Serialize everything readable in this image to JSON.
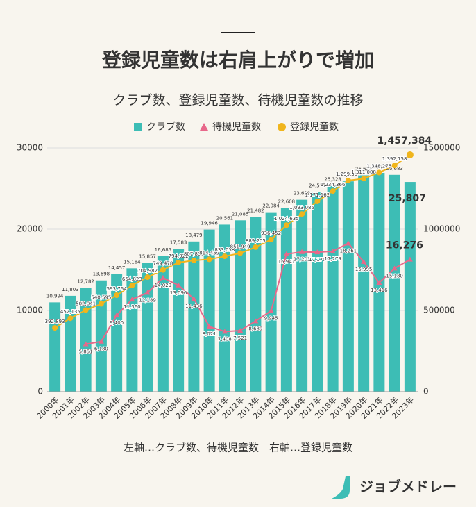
{
  "chart_data": {
    "type": "bar-line",
    "title": "登録児童数は右肩上がりで増加",
    "subtitle": "クラブ数、登録児童数、待機児童数の推移",
    "categories": [
      "2000年",
      "2001年",
      "2002年",
      "2003年",
      "2004年",
      "2005年",
      "2006年",
      "2007年",
      "2008年",
      "2009年",
      "2010年",
      "2011年",
      "2012年",
      "2013年",
      "2014年",
      "2015年",
      "2016年",
      "2017年",
      "2018年",
      "2019年",
      "2020年",
      "2021年",
      "2022年",
      "2023年"
    ],
    "series": [
      {
        "name": "クラブ数",
        "type": "bar",
        "color": "#3dbdb5",
        "axis": "y",
        "values": [
          10994,
          11803,
          12782,
          13698,
          14457,
          15184,
          15857,
          16685,
          17583,
          18479,
          19946,
          20561,
          21085,
          21482,
          22084,
          22608,
          23619,
          24573,
          25328,
          25881,
          26625,
          26925,
          26683,
          25807
        ],
        "value_labels": [
          "10,994",
          "11,803",
          "12,782",
          "13,698",
          "14,457",
          "15,184",
          "15,857",
          "16,685",
          "17,583",
          "18,479",
          "19,946",
          "20,561",
          "21,085",
          "21,482",
          "22,084",
          "22,608",
          "23,619",
          "24,573",
          "25,328",
          "25,881",
          "26,625",
          "26,925",
          "26,683",
          "25,807"
        ]
      },
      {
        "name": "待機児童数",
        "type": "line",
        "marker": "triangle",
        "color": "#e8688a",
        "axis": "y",
        "values": [
          null,
          null,
          5851,
          6180,
          9400,
          11360,
          12189,
          14029,
          13096,
          11436,
          8021,
          7408,
          7521,
          8689,
          9945,
          16941,
          17203,
          17170,
          17279,
          18261,
          15995,
          13416,
          15180,
          16276
        ],
        "value_labels": [
          null,
          null,
          "5,851",
          "6,180",
          "9,400",
          "11,360",
          "12,189",
          "14,029",
          "13,096",
          "11,436",
          "8,021",
          "7,408",
          "7,521",
          "8,689",
          "9,945",
          "16,941",
          "17,203",
          "17,170",
          "17,279",
          "18,261",
          "15,995",
          "13,416",
          "15,180",
          "16,276"
        ]
      },
      {
        "name": "登録児童数",
        "type": "line",
        "marker": "circle",
        "color": "#f0b51c",
        "axis": "y2",
        "values": [
          392893,
          452135,
          502041,
          540595,
          593764,
          654823,
          704982,
          749478,
          794922,
          807857,
          814439,
          833038,
          851949,
          889205,
          936452,
          1024635,
          1093085,
          1171162,
          1234366,
          1299307,
          1311008,
          1348275,
          1392158,
          1457384
        ],
        "value_labels": [
          "392,893",
          "452,135",
          "502,041",
          "540,595",
          "593,764",
          "654,823",
          "704,982",
          "749,478",
          "794,922",
          "807,857",
          "814,439",
          "833,038",
          "851,949",
          "889,205",
          "936,452",
          "1,024,635",
          "1,093,085",
          "1,171,162",
          "1,234,366",
          "1,299,307",
          "1,311,008",
          "1,348,275",
          "1,392,158",
          "1,457,384"
        ]
      }
    ],
    "ylim": [
      0,
      30000
    ],
    "yticks": [
      0,
      10000,
      20000,
      30000
    ],
    "y2lim": [
      0,
      1500000
    ],
    "y2ticks": [
      0,
      500000,
      1000000,
      1500000
    ],
    "grid": true
  },
  "footer": {
    "note": "左軸…クラブ数、待機児童数　右軸…登録児童数",
    "brand": "ジョブメドレー"
  }
}
